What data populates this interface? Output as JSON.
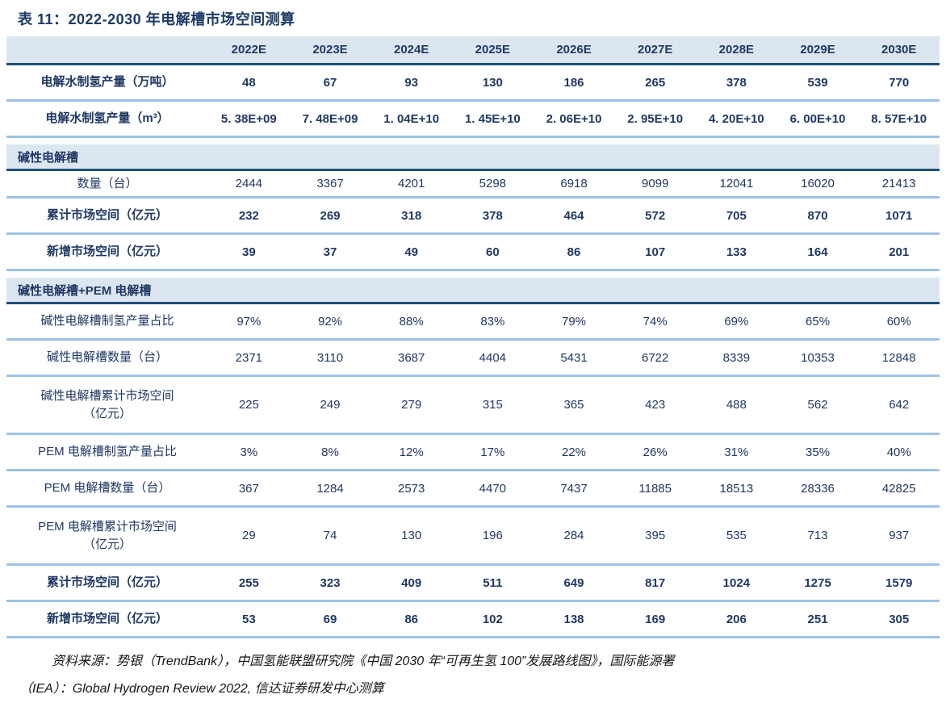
{
  "title": "表 11：2022-2030 年电解槽市场空间测算",
  "colors": {
    "band_bg": "#dce6f1",
    "navy_text": "#1f3864",
    "dark_border": "#1f4e79",
    "light_border": "#9dc3e6"
  },
  "table": {
    "year_headers": [
      "2022E",
      "2023E",
      "2024E",
      "2025E",
      "2026E",
      "2027E",
      "2028E",
      "2029E",
      "2030E"
    ],
    "rows": [
      {
        "type": "data",
        "bold": true,
        "label": "电解水制氢产量（万吨）",
        "values": [
          "48",
          "67",
          "93",
          "130",
          "186",
          "265",
          "378",
          "539",
          "770"
        ]
      },
      {
        "type": "data",
        "bold": true,
        "label": "电解水制氢产量（m³）",
        "values": [
          "5. 38E+09",
          "7. 48E+09",
          "1. 04E+10",
          "1. 45E+10",
          "2. 06E+10",
          "2. 95E+10",
          "4. 20E+10",
          "6. 00E+10",
          "8. 57E+10"
        ]
      },
      {
        "type": "section",
        "label": "碱性电解槽"
      },
      {
        "type": "data",
        "bold": false,
        "compact": true,
        "label": "数量（台）",
        "values": [
          "2444",
          "3367",
          "4201",
          "5298",
          "6918",
          "9099",
          "12041",
          "16020",
          "21413"
        ]
      },
      {
        "type": "data",
        "bold": true,
        "label": "累计市场空间（亿元）",
        "values": [
          "232",
          "269",
          "318",
          "378",
          "464",
          "572",
          "705",
          "870",
          "1071"
        ]
      },
      {
        "type": "data",
        "bold": true,
        "label": "新增市场空间（亿元）",
        "values": [
          "39",
          "37",
          "49",
          "60",
          "86",
          "107",
          "133",
          "164",
          "201"
        ]
      },
      {
        "type": "section",
        "label": "碱性电解槽+PEM 电解槽"
      },
      {
        "type": "data",
        "bold": false,
        "label": "碱性电解槽制氢产量占比",
        "values": [
          "97%",
          "92%",
          "88%",
          "83%",
          "79%",
          "74%",
          "69%",
          "65%",
          "60%"
        ]
      },
      {
        "type": "data",
        "bold": false,
        "label": "碱性电解槽数量（台）",
        "values": [
          "2371",
          "3110",
          "3687",
          "4404",
          "5431",
          "6722",
          "8339",
          "10353",
          "12848"
        ]
      },
      {
        "type": "data",
        "bold": false,
        "tall": true,
        "label": "碱性电解槽累计市场空间\n（亿元）",
        "values": [
          "225",
          "249",
          "279",
          "315",
          "365",
          "423",
          "488",
          "562",
          "642"
        ]
      },
      {
        "type": "data",
        "bold": false,
        "label": "PEM 电解槽制氢产量占比",
        "values": [
          "3%",
          "8%",
          "12%",
          "17%",
          "22%",
          "26%",
          "31%",
          "35%",
          "40%"
        ]
      },
      {
        "type": "data",
        "bold": false,
        "label": "PEM 电解槽数量（台）",
        "values": [
          "367",
          "1284",
          "2573",
          "4470",
          "7437",
          "11885",
          "18513",
          "28336",
          "42825"
        ]
      },
      {
        "type": "data",
        "bold": false,
        "tall": true,
        "label": "PEM 电解槽累计市场空间\n（亿元）",
        "values": [
          "29",
          "74",
          "130",
          "196",
          "284",
          "395",
          "535",
          "713",
          "937"
        ]
      },
      {
        "type": "data",
        "bold": true,
        "label": "累计市场空间（亿元）",
        "values": [
          "255",
          "323",
          "409",
          "511",
          "649",
          "817",
          "1024",
          "1275",
          "1579"
        ]
      },
      {
        "type": "data",
        "bold": true,
        "label": "新增市场空间（亿元）",
        "values": [
          "53",
          "69",
          "86",
          "102",
          "138",
          "169",
          "206",
          "251",
          "305"
        ]
      }
    ]
  },
  "footer": {
    "line1": "资料来源：势银（TrendBank），中国氢能联盟研究院《中国 2030 年“可再生氢 100”发展路线图》，国际能源署",
    "line2": "（IEA）：Global Hydrogen Review 2022, 信达证券研发中心测算"
  }
}
